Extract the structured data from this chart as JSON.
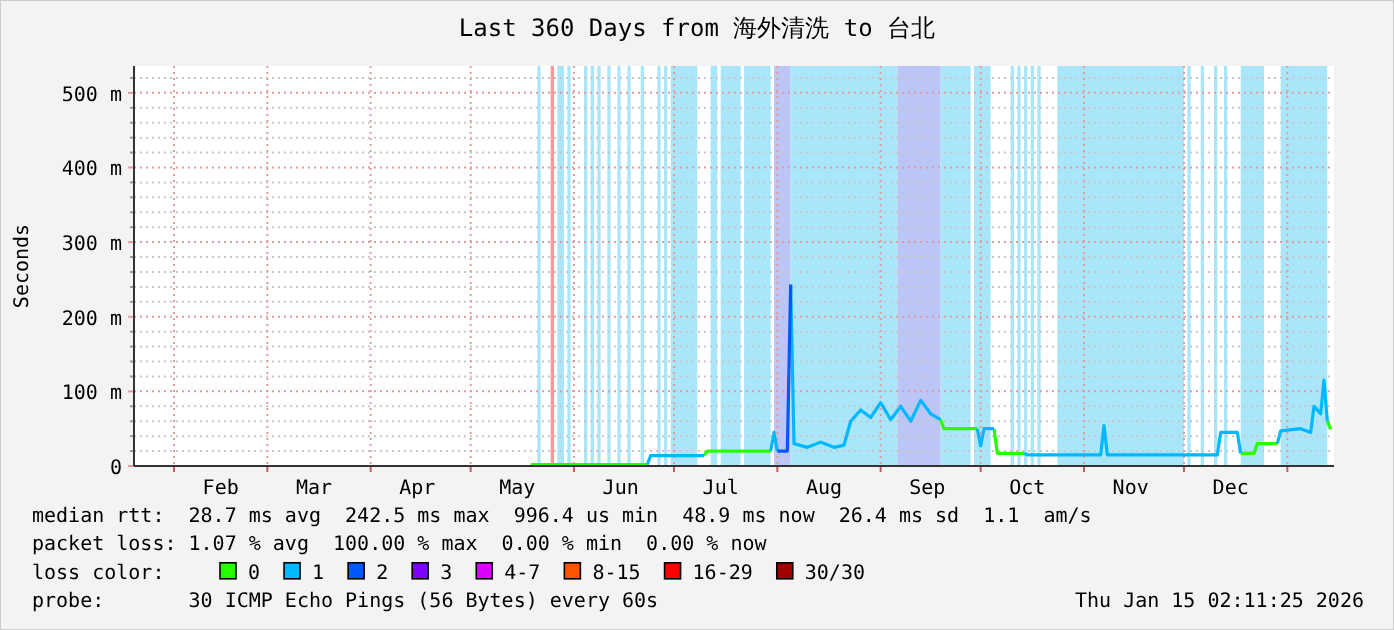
{
  "chart_data": {
    "type": "line",
    "title": "Last 360 Days from 海外清洗 to 台北",
    "ylabel": "Seconds",
    "xlim": [
      "2025-01-20",
      "2026-01-15"
    ],
    "xticks": [
      {
        "value": "2025-02-01",
        "label": null
      },
      {
        "value": "2025-02-15",
        "label": "Feb"
      },
      {
        "value": "2025-03-01",
        "label": null
      },
      {
        "value": "2025-03-15",
        "label": "Mar"
      },
      {
        "value": "2025-04-01",
        "label": null
      },
      {
        "value": "2025-04-15",
        "label": "Apr"
      },
      {
        "value": "2025-05-01",
        "label": null
      },
      {
        "value": "2025-05-15",
        "label": "May"
      },
      {
        "value": "2025-06-01",
        "label": null
      },
      {
        "value": "2025-06-15",
        "label": "Jun"
      },
      {
        "value": "2025-07-01",
        "label": null
      },
      {
        "value": "2025-07-15",
        "label": "Jul"
      },
      {
        "value": "2025-08-01",
        "label": null
      },
      {
        "value": "2025-08-15",
        "label": "Aug"
      },
      {
        "value": "2025-09-01",
        "label": null
      },
      {
        "value": "2025-09-15",
        "label": "Sep"
      },
      {
        "value": "2025-10-01",
        "label": null
      },
      {
        "value": "2025-10-15",
        "label": "Oct"
      },
      {
        "value": "2025-11-01",
        "label": null
      },
      {
        "value": "2025-11-15",
        "label": "Nov"
      },
      {
        "value": "2025-12-01",
        "label": null
      },
      {
        "value": "2025-12-15",
        "label": "Dec"
      },
      {
        "value": "2026-01-01",
        "label": null
      }
    ],
    "ylim": [
      0,
      536
    ],
    "yticks": [
      0,
      {
        "value": 20,
        "label": null
      },
      {
        "value": 40,
        "label": null
      },
      {
        "value": 60,
        "label": null
      },
      {
        "value": 80,
        "label": null
      },
      {
        "value": 100,
        "label": "100 m"
      },
      {
        "value": 120,
        "label": null
      },
      {
        "value": 140,
        "label": null
      },
      {
        "value": 160,
        "label": null
      },
      {
        "value": 180,
        "label": null
      },
      {
        "value": 200,
        "label": "200 m"
      },
      {
        "value": 220,
        "label": null
      },
      {
        "value": 240,
        "label": null
      },
      {
        "value": 260,
        "label": null
      },
      {
        "value": 280,
        "label": null
      },
      {
        "value": 300,
        "label": "300 m"
      },
      {
        "value": 320,
        "label": null
      },
      {
        "value": 340,
        "label": null
      },
      {
        "value": 360,
        "label": null
      },
      {
        "value": 380,
        "label": null
      },
      {
        "value": 400,
        "label": "400 m"
      },
      {
        "value": 420,
        "label": null
      },
      {
        "value": 440,
        "label": null
      },
      {
        "value": 460,
        "label": null
      },
      {
        "value": 480,
        "label": null
      },
      {
        "value": 500,
        "label": "500 m"
      },
      {
        "value": 520,
        "label": null
      }
    ],
    "grid": true,
    "legend": "bottom",
    "legend_title": "loss color:",
    "x": [
      "2025-05-19",
      "2025-06-23",
      "2025-06-24",
      "2025-07-10",
      "2025-07-11",
      "2025-07-30",
      "2025-07-31",
      "2025-08-01",
      "2025-08-04",
      "2025-08-05",
      "2025-08-06",
      "2025-08-10",
      "2025-08-14",
      "2025-08-18",
      "2025-08-21",
      "2025-08-23",
      "2025-08-26",
      "2025-08-29",
      "2025-09-01",
      "2025-09-04",
      "2025-09-07",
      "2025-09-10",
      "2025-09-13",
      "2025-09-16",
      "2025-09-19",
      "2025-09-20",
      "2025-09-30",
      "2025-10-01",
      "2025-10-02",
      "2025-10-05",
      "2025-10-06",
      "2025-10-14",
      "2025-10-15",
      "2025-11-06",
      "2025-11-07",
      "2025-11-08",
      "2025-12-11",
      "2025-12-12",
      "2025-12-17",
      "2025-12-18",
      "2025-12-22",
      "2025-12-23",
      "2025-12-29",
      "2025-12-30",
      "2026-01-05",
      "2026-01-08",
      "2026-01-09",
      "2026-01-11",
      "2026-01-12",
      "2026-01-13",
      "2026-01-14"
    ],
    "series": [
      {
        "name": "0",
        "color": "#26ff00",
        "values": [
          2,
          2,
          null,
          14,
          20,
          20,
          null,
          null,
          null,
          null,
          null,
          null,
          null,
          null,
          null,
          null,
          null,
          null,
          null,
          null,
          null,
          null,
          null,
          null,
          62,
          50,
          50,
          null,
          null,
          50,
          17,
          17,
          null,
          null,
          null,
          null,
          null,
          null,
          null,
          17,
          17,
          30,
          30,
          null,
          null,
          null,
          null,
          null,
          null,
          60,
          49
        ]
      },
      {
        "name": "1",
        "color": "#00b8ff",
        "values": [
          null,
          2,
          14,
          14,
          null,
          20,
          45,
          20,
          null,
          243,
          30,
          25,
          32,
          25,
          28,
          60,
          75,
          65,
          85,
          62,
          80,
          60,
          88,
          70,
          62,
          null,
          50,
          27,
          50,
          50,
          null,
          17,
          15,
          15,
          54,
          15,
          15,
          45,
          45,
          17,
          null,
          null,
          30,
          47,
          50,
          45,
          80,
          70,
          115,
          60,
          null
        ]
      },
      {
        "name": "2",
        "color": "#0059ff",
        "values": [
          null,
          null,
          null,
          null,
          null,
          null,
          null,
          20,
          20,
          243,
          null,
          null,
          null,
          null,
          null,
          null,
          null,
          null,
          null,
          null,
          null,
          null,
          null,
          null,
          null,
          null,
          null,
          null,
          null,
          null,
          null,
          null,
          null,
          null,
          null,
          null,
          null,
          null,
          null,
          null,
          null,
          null,
          null,
          null,
          null,
          null,
          null,
          null,
          null,
          null,
          null
        ]
      },
      {
        "name": "3",
        "color": "#7e00ff",
        "values": [
          null,
          null,
          null,
          null,
          null,
          null,
          null,
          null,
          null,
          null,
          null,
          null,
          null,
          null,
          null,
          null,
          null,
          null,
          null,
          null,
          null,
          null,
          null,
          null,
          null,
          null,
          null,
          null,
          null,
          null,
          null,
          null,
          null,
          null,
          null,
          null,
          null,
          null,
          null,
          null,
          null,
          null,
          null,
          null,
          null,
          null,
          null,
          null,
          null,
          null,
          null
        ]
      },
      {
        "name": "4-7",
        "color": "#dd00ff",
        "values": [
          null,
          null,
          null,
          null,
          null,
          null,
          null,
          null,
          null,
          null,
          null,
          null,
          null,
          null,
          null,
          null,
          null,
          null,
          null,
          null,
          null,
          null,
          null,
          null,
          null,
          null,
          null,
          null,
          null,
          null,
          null,
          null,
          null,
          null,
          null,
          null,
          null,
          null,
          null,
          null,
          null,
          null,
          null,
          null,
          null,
          null,
          null,
          null,
          null,
          null,
          null
        ]
      },
      {
        "name": "8-15",
        "color": "#ff5500",
        "values": [
          null,
          null,
          null,
          null,
          null,
          null,
          null,
          null,
          null,
          null,
          null,
          null,
          null,
          null,
          null,
          null,
          null,
          null,
          null,
          null,
          null,
          null,
          null,
          null,
          null,
          null,
          null,
          null,
          null,
          null,
          null,
          null,
          null,
          null,
          null,
          null,
          null,
          null,
          null,
          null,
          null,
          null,
          null,
          null,
          null,
          null,
          null,
          null,
          null,
          null,
          null
        ]
      },
      {
        "name": "16-29",
        "color": "#ff0000",
        "values": [
          null,
          null,
          null,
          null,
          null,
          null,
          null,
          null,
          null,
          null,
          null,
          null,
          null,
          null,
          null,
          null,
          null,
          null,
          null,
          null,
          null,
          null,
          null,
          null,
          null,
          null,
          null,
          null,
          null,
          null,
          null,
          null,
          null,
          null,
          null,
          null,
          null,
          null,
          null,
          null,
          null,
          null,
          null,
          null,
          null,
          null,
          null,
          null,
          null,
          null,
          null
        ]
      },
      {
        "name": "30/30",
        "color": "#a10000",
        "values": [
          null,
          null,
          null,
          null,
          null,
          null,
          null,
          null,
          null,
          null,
          null,
          null,
          null,
          null,
          null,
          null,
          null,
          null,
          null,
          null,
          null,
          null,
          null,
          null,
          null,
          null,
          null,
          null,
          null,
          null,
          null,
          null,
          null,
          null,
          null,
          null,
          null,
          null,
          null,
          null,
          null,
          null,
          null,
          null,
          null,
          null,
          null,
          null,
          null,
          null,
          null
        ]
      }
    ],
    "bands": [
      {
        "axis": "x",
        "from": "2025-05-21",
        "to": "2025-05-22",
        "color": "#aae6fa"
      },
      {
        "axis": "x",
        "from": "2025-05-25",
        "to": "2025-05-26",
        "color": "#ff9999"
      },
      {
        "axis": "x",
        "from": "2025-05-27",
        "to": "2025-05-29",
        "color": "#aae6fa"
      },
      {
        "axis": "x",
        "from": "2025-05-30",
        "to": "2025-05-31",
        "color": "#aae6fa"
      },
      {
        "axis": "x",
        "from": "2025-06-04",
        "to": "2025-06-05",
        "color": "#aae6fa"
      },
      {
        "axis": "x",
        "from": "2025-06-06",
        "to": "2025-06-07",
        "color": "#aae6fa"
      },
      {
        "axis": "x",
        "from": "2025-06-08",
        "to": "2025-06-09",
        "color": "#aae6fa"
      },
      {
        "axis": "x",
        "from": "2025-06-11",
        "to": "2025-06-12",
        "color": "#aae6fa"
      },
      {
        "axis": "x",
        "from": "2025-06-14",
        "to": "2025-06-15",
        "color": "#aae6fa"
      },
      {
        "axis": "x",
        "from": "2025-06-17",
        "to": "2025-06-18",
        "color": "#aae6fa"
      },
      {
        "axis": "x",
        "from": "2025-06-21",
        "to": "2025-06-22",
        "color": "#aae6fa"
      },
      {
        "axis": "x",
        "from": "2025-06-26",
        "to": "2025-06-27",
        "color": "#aae6fa"
      },
      {
        "axis": "x",
        "from": "2025-06-28",
        "to": "2025-06-29",
        "color": "#aae6fa"
      },
      {
        "axis": "x",
        "from": "2025-06-30",
        "to": "2025-07-08",
        "color": "#aae6fa"
      },
      {
        "axis": "x",
        "from": "2025-07-12",
        "to": "2025-07-14",
        "color": "#aae6fa"
      },
      {
        "axis": "x",
        "from": "2025-07-15",
        "to": "2025-07-21",
        "color": "#aae6fa"
      },
      {
        "axis": "x",
        "from": "2025-07-22",
        "to": "2025-07-30",
        "color": "#aae6fa"
      },
      {
        "axis": "x",
        "from": "2025-07-31",
        "to": "2025-08-05",
        "color": "#bcc6f6"
      },
      {
        "axis": "x",
        "from": "2025-08-05",
        "to": "2025-09-06",
        "color": "#aae6fa"
      },
      {
        "axis": "x",
        "from": "2025-09-06",
        "to": "2025-09-19",
        "color": "#bcc6f6"
      },
      {
        "axis": "x",
        "from": "2025-09-19",
        "to": "2025-09-28",
        "color": "#aae6fa"
      },
      {
        "axis": "x",
        "from": "2025-09-29",
        "to": "2025-10-04",
        "color": "#aae6fa"
      },
      {
        "axis": "x",
        "from": "2025-10-10",
        "to": "2025-10-11",
        "color": "#aae6fa"
      },
      {
        "axis": "x",
        "from": "2025-10-12",
        "to": "2025-10-13",
        "color": "#aae6fa"
      },
      {
        "axis": "x",
        "from": "2025-10-14",
        "to": "2025-10-15",
        "color": "#aae6fa"
      },
      {
        "axis": "x",
        "from": "2025-10-16",
        "to": "2025-10-17",
        "color": "#aae6fa"
      },
      {
        "axis": "x",
        "from": "2025-10-18",
        "to": "2025-10-19",
        "color": "#aae6fa"
      },
      {
        "axis": "x",
        "from": "2025-10-24",
        "to": "2025-12-01",
        "color": "#aae6fa"
      },
      {
        "axis": "x",
        "from": "2025-12-02",
        "to": "2025-12-03",
        "color": "#aae6fa"
      },
      {
        "axis": "x",
        "from": "2025-12-06",
        "to": "2025-12-07",
        "color": "#aae6fa"
      },
      {
        "axis": "x",
        "from": "2025-12-10",
        "to": "2025-12-11",
        "color": "#aae6fa"
      },
      {
        "axis": "x",
        "from": "2025-12-13",
        "to": "2025-12-14",
        "color": "#aae6fa"
      },
      {
        "axis": "x",
        "from": "2025-12-18",
        "to": "2025-12-25",
        "color": "#aae6fa"
      },
      {
        "axis": "x",
        "from": "2025-12-30",
        "to": "2026-01-13",
        "color": "#aae6fa"
      }
    ],
    "annotations": [
      "median rtt:  28.7 ms avg  242.5 ms max  996.4 us min  48.9 ms now  26.4 ms sd  1.1  am/s",
      "packet loss: 1.07 % avg  100.00 % max  0.00 % min  0.00 % now",
      "probe:       30 ICMP Echo Pings (56 Bytes) every 60s",
      "Thu Jan 15 02:11:25 2026"
    ]
  }
}
